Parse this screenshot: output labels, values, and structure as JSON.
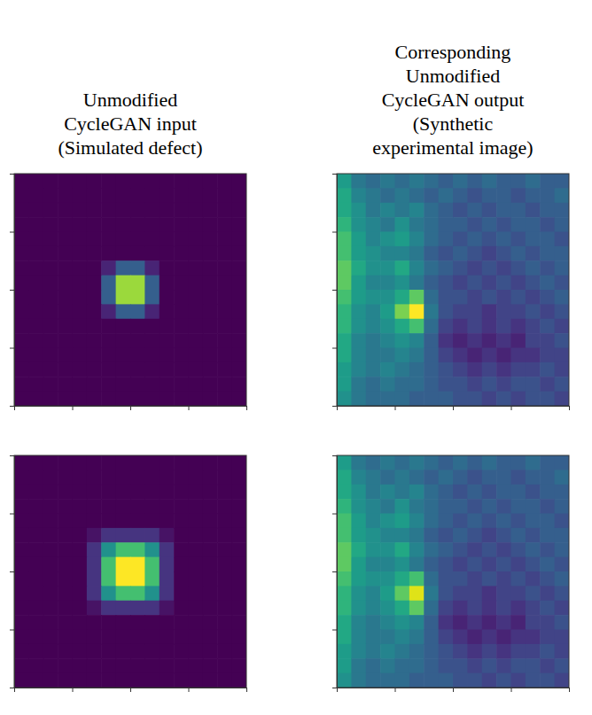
{
  "chart_data": [
    {
      "type": "heatmap",
      "title": "Unmodified CycleGAN input (Simulated defect)",
      "color": "viridis",
      "zlim": [
        0,
        1
      ],
      "xlim": [
        0,
        16
      ],
      "ylim": [
        0,
        16
      ],
      "xticks": [
        0,
        4,
        8,
        12,
        16
      ],
      "yticks": [
        0,
        4,
        8,
        12,
        16
      ],
      "tick_labels": false,
      "cells": [
        [
          0,
          0,
          0,
          0,
          0,
          0,
          0,
          0,
          0,
          0,
          0,
          0,
          0,
          0,
          0,
          0
        ],
        [
          0,
          0,
          0,
          0,
          0,
          0,
          0,
          0,
          0,
          0,
          0,
          0,
          0,
          0,
          0,
          0
        ],
        [
          0,
          0,
          0,
          0,
          0,
          0,
          0,
          0,
          0,
          0,
          0,
          0,
          0,
          0,
          0,
          0
        ],
        [
          0,
          0,
          0,
          0,
          0,
          0,
          0,
          0,
          0,
          0,
          0,
          0,
          0,
          0,
          0,
          0
        ],
        [
          0,
          0,
          0,
          0,
          0,
          0,
          0,
          0,
          0,
          0,
          0,
          0,
          0,
          0,
          0,
          0
        ],
        [
          0,
          0,
          0,
          0,
          0,
          0,
          0,
          0,
          0,
          0,
          0,
          0,
          0,
          0,
          0,
          0
        ],
        [
          0,
          0,
          0,
          0,
          0,
          0,
          0.1,
          0.3,
          0.3,
          0.1,
          0,
          0,
          0,
          0,
          0,
          0
        ],
        [
          0,
          0,
          0,
          0,
          0,
          0,
          0.3,
          0.85,
          0.85,
          0.3,
          0,
          0,
          0,
          0,
          0,
          0
        ],
        [
          0,
          0,
          0,
          0,
          0,
          0,
          0.3,
          0.85,
          0.85,
          0.3,
          0,
          0,
          0,
          0,
          0,
          0
        ],
        [
          0,
          0,
          0,
          0,
          0,
          0,
          0.1,
          0.3,
          0.3,
          0.1,
          0,
          0,
          0,
          0,
          0,
          0
        ],
        [
          0,
          0,
          0,
          0,
          0,
          0,
          0,
          0,
          0,
          0,
          0,
          0,
          0,
          0,
          0,
          0
        ],
        [
          0,
          0,
          0,
          0,
          0,
          0,
          0,
          0,
          0,
          0,
          0,
          0,
          0,
          0,
          0,
          0
        ],
        [
          0,
          0,
          0,
          0,
          0,
          0,
          0,
          0,
          0,
          0,
          0,
          0,
          0,
          0,
          0,
          0
        ],
        [
          0,
          0,
          0,
          0,
          0,
          0,
          0,
          0,
          0,
          0,
          0,
          0,
          0,
          0,
          0,
          0
        ],
        [
          0,
          0,
          0,
          0,
          0,
          0,
          0,
          0,
          0,
          0,
          0,
          0,
          0,
          0,
          0,
          0
        ],
        [
          0,
          0,
          0,
          0,
          0,
          0,
          0,
          0,
          0,
          0,
          0,
          0,
          0,
          0,
          0,
          0
        ]
      ]
    },
    {
      "type": "heatmap",
      "title": "Corresponding Unmodified CycleGAN output (Synthetic experimental image)",
      "color": "viridis",
      "zlim": [
        0,
        1
      ],
      "xlim": [
        0,
        16
      ],
      "ylim": [
        0,
        16
      ],
      "xticks": [
        0,
        4,
        8,
        12,
        16
      ],
      "yticks": [
        0,
        4,
        8,
        12,
        16
      ],
      "tick_labels": false,
      "cells": [
        [
          0.55,
          0.4,
          0.35,
          0.4,
          0.35,
          0.4,
          0.35,
          0.3,
          0.35,
          0.3,
          0.35,
          0.3,
          0.3,
          0.35,
          0.3,
          0.3
        ],
        [
          0.6,
          0.45,
          0.4,
          0.35,
          0.4,
          0.35,
          0.3,
          0.35,
          0.3,
          0.25,
          0.3,
          0.3,
          0.25,
          0.3,
          0.3,
          0.35
        ],
        [
          0.6,
          0.5,
          0.4,
          0.45,
          0.4,
          0.45,
          0.35,
          0.3,
          0.25,
          0.3,
          0.25,
          0.3,
          0.3,
          0.25,
          0.3,
          0.3
        ],
        [
          0.65,
          0.5,
          0.45,
          0.4,
          0.5,
          0.4,
          0.35,
          0.3,
          0.3,
          0.25,
          0.3,
          0.25,
          0.3,
          0.3,
          0.25,
          0.3
        ],
        [
          0.7,
          0.55,
          0.45,
          0.5,
          0.55,
          0.45,
          0.35,
          0.3,
          0.25,
          0.3,
          0.25,
          0.3,
          0.25,
          0.3,
          0.3,
          0.25
        ],
        [
          0.7,
          0.55,
          0.5,
          0.45,
          0.45,
          0.4,
          0.3,
          0.25,
          0.3,
          0.25,
          0.2,
          0.25,
          0.3,
          0.25,
          0.3,
          0.3
        ],
        [
          0.75,
          0.6,
          0.5,
          0.5,
          0.6,
          0.45,
          0.35,
          0.3,
          0.25,
          0.2,
          0.25,
          0.2,
          0.25,
          0.3,
          0.25,
          0.3
        ],
        [
          0.75,
          0.55,
          0.45,
          0.45,
          0.5,
          0.4,
          0.3,
          0.25,
          0.2,
          0.25,
          0.2,
          0.25,
          0.2,
          0.25,
          0.3,
          0.25
        ],
        [
          0.7,
          0.55,
          0.5,
          0.5,
          0.6,
          0.75,
          0.35,
          0.25,
          0.25,
          0.2,
          0.25,
          0.2,
          0.25,
          0.2,
          0.25,
          0.3
        ],
        [
          0.65,
          0.5,
          0.45,
          0.55,
          0.8,
          1.0,
          0.4,
          0.25,
          0.2,
          0.2,
          0.15,
          0.2,
          0.2,
          0.25,
          0.2,
          0.25
        ],
        [
          0.65,
          0.5,
          0.45,
          0.5,
          0.6,
          0.7,
          0.35,
          0.2,
          0.15,
          0.2,
          0.15,
          0.2,
          0.15,
          0.2,
          0.25,
          0.2
        ],
        [
          0.6,
          0.45,
          0.4,
          0.45,
          0.5,
          0.45,
          0.3,
          0.15,
          0.1,
          0.15,
          0.1,
          0.15,
          0.1,
          0.2,
          0.2,
          0.25
        ],
        [
          0.6,
          0.45,
          0.4,
          0.4,
          0.45,
          0.4,
          0.3,
          0.2,
          0.15,
          0.1,
          0.15,
          0.1,
          0.15,
          0.15,
          0.2,
          0.2
        ],
        [
          0.55,
          0.45,
          0.4,
          0.45,
          0.4,
          0.35,
          0.3,
          0.25,
          0.2,
          0.15,
          0.2,
          0.15,
          0.2,
          0.2,
          0.25,
          0.2
        ],
        [
          0.55,
          0.4,
          0.35,
          0.4,
          0.35,
          0.35,
          0.3,
          0.25,
          0.25,
          0.2,
          0.25,
          0.2,
          0.25,
          0.25,
          0.2,
          0.25
        ],
        [
          0.5,
          0.4,
          0.35,
          0.35,
          0.35,
          0.3,
          0.3,
          0.3,
          0.25,
          0.25,
          0.2,
          0.25,
          0.2,
          0.25,
          0.25,
          0.2
        ]
      ]
    },
    {
      "type": "heatmap",
      "color": "viridis",
      "zlim": [
        0,
        1
      ],
      "xlim": [
        0,
        16
      ],
      "ylim": [
        0,
        16
      ],
      "xticks": [
        0,
        4,
        8,
        12,
        16
      ],
      "yticks": [
        0,
        4,
        8,
        12,
        16
      ],
      "tick_labels": false,
      "cells": [
        [
          0,
          0,
          0,
          0,
          0,
          0,
          0,
          0,
          0,
          0,
          0,
          0,
          0,
          0,
          0,
          0
        ],
        [
          0,
          0,
          0,
          0,
          0,
          0,
          0,
          0,
          0,
          0,
          0,
          0,
          0,
          0,
          0,
          0
        ],
        [
          0,
          0,
          0,
          0,
          0,
          0,
          0,
          0,
          0,
          0,
          0,
          0,
          0,
          0,
          0,
          0
        ],
        [
          0,
          0,
          0,
          0,
          0,
          0,
          0,
          0,
          0,
          0,
          0,
          0,
          0,
          0,
          0,
          0
        ],
        [
          0,
          0,
          0,
          0,
          0,
          0,
          0,
          0,
          0,
          0,
          0,
          0,
          0,
          0,
          0,
          0
        ],
        [
          0,
          0,
          0,
          0,
          0,
          0.05,
          0.15,
          0.15,
          0.15,
          0.15,
          0.05,
          0,
          0,
          0,
          0,
          0
        ],
        [
          0,
          0,
          0,
          0,
          0,
          0.15,
          0.5,
          0.7,
          0.7,
          0.5,
          0.15,
          0,
          0,
          0,
          0,
          0
        ],
        [
          0,
          0,
          0,
          0,
          0,
          0.15,
          0.7,
          1.0,
          1.0,
          0.7,
          0.15,
          0,
          0,
          0,
          0,
          0
        ],
        [
          0,
          0,
          0,
          0,
          0,
          0.15,
          0.7,
          1.0,
          1.0,
          0.7,
          0.15,
          0,
          0,
          0,
          0,
          0
        ],
        [
          0,
          0,
          0,
          0,
          0,
          0.15,
          0.5,
          0.7,
          0.7,
          0.5,
          0.15,
          0,
          0,
          0,
          0,
          0
        ],
        [
          0,
          0,
          0,
          0,
          0,
          0.05,
          0.15,
          0.15,
          0.15,
          0.15,
          0.05,
          0,
          0,
          0,
          0,
          0
        ],
        [
          0,
          0,
          0,
          0,
          0,
          0,
          0,
          0,
          0,
          0,
          0,
          0,
          0,
          0,
          0,
          0
        ],
        [
          0,
          0,
          0,
          0,
          0,
          0,
          0,
          0,
          0,
          0,
          0,
          0,
          0,
          0,
          0,
          0
        ],
        [
          0,
          0,
          0,
          0,
          0,
          0,
          0,
          0,
          0,
          0,
          0,
          0,
          0,
          0,
          0,
          0
        ],
        [
          0,
          0,
          0,
          0,
          0,
          0,
          0,
          0,
          0,
          0,
          0,
          0,
          0,
          0,
          0,
          0
        ],
        [
          0,
          0,
          0,
          0,
          0,
          0,
          0,
          0,
          0,
          0,
          0,
          0,
          0,
          0,
          0,
          0
        ]
      ]
    },
    {
      "type": "heatmap",
      "color": "viridis",
      "zlim": [
        0,
        1
      ],
      "xlim": [
        0,
        16
      ],
      "ylim": [
        0,
        16
      ],
      "xticks": [
        0,
        4,
        8,
        12,
        16
      ],
      "yticks": [
        0,
        4,
        8,
        12,
        16
      ],
      "tick_labels": false,
      "cells": [
        [
          0.55,
          0.4,
          0.35,
          0.4,
          0.35,
          0.4,
          0.35,
          0.3,
          0.35,
          0.3,
          0.35,
          0.3,
          0.3,
          0.35,
          0.3,
          0.3
        ],
        [
          0.6,
          0.45,
          0.4,
          0.35,
          0.4,
          0.35,
          0.3,
          0.35,
          0.3,
          0.25,
          0.3,
          0.3,
          0.25,
          0.3,
          0.3,
          0.35
        ],
        [
          0.6,
          0.5,
          0.4,
          0.45,
          0.4,
          0.45,
          0.35,
          0.3,
          0.25,
          0.3,
          0.25,
          0.3,
          0.3,
          0.25,
          0.3,
          0.3
        ],
        [
          0.65,
          0.5,
          0.45,
          0.4,
          0.5,
          0.4,
          0.35,
          0.3,
          0.3,
          0.25,
          0.3,
          0.25,
          0.3,
          0.3,
          0.25,
          0.3
        ],
        [
          0.7,
          0.55,
          0.45,
          0.5,
          0.55,
          0.45,
          0.35,
          0.3,
          0.25,
          0.3,
          0.25,
          0.3,
          0.25,
          0.3,
          0.3,
          0.25
        ],
        [
          0.7,
          0.55,
          0.5,
          0.45,
          0.45,
          0.4,
          0.3,
          0.25,
          0.3,
          0.25,
          0.2,
          0.25,
          0.3,
          0.25,
          0.3,
          0.3
        ],
        [
          0.75,
          0.6,
          0.5,
          0.5,
          0.6,
          0.45,
          0.35,
          0.3,
          0.25,
          0.2,
          0.25,
          0.2,
          0.25,
          0.3,
          0.25,
          0.3
        ],
        [
          0.75,
          0.55,
          0.45,
          0.45,
          0.5,
          0.4,
          0.3,
          0.25,
          0.2,
          0.25,
          0.2,
          0.25,
          0.2,
          0.25,
          0.3,
          0.25
        ],
        [
          0.7,
          0.55,
          0.5,
          0.5,
          0.6,
          0.7,
          0.35,
          0.25,
          0.25,
          0.2,
          0.25,
          0.2,
          0.25,
          0.2,
          0.25,
          0.3
        ],
        [
          0.65,
          0.5,
          0.45,
          0.55,
          0.75,
          0.95,
          0.4,
          0.25,
          0.2,
          0.2,
          0.15,
          0.2,
          0.2,
          0.25,
          0.2,
          0.25
        ],
        [
          0.65,
          0.5,
          0.45,
          0.5,
          0.6,
          0.75,
          0.35,
          0.2,
          0.15,
          0.2,
          0.15,
          0.2,
          0.15,
          0.2,
          0.25,
          0.2
        ],
        [
          0.6,
          0.45,
          0.4,
          0.45,
          0.5,
          0.45,
          0.3,
          0.15,
          0.1,
          0.15,
          0.1,
          0.15,
          0.1,
          0.2,
          0.2,
          0.25
        ],
        [
          0.6,
          0.45,
          0.4,
          0.4,
          0.45,
          0.4,
          0.3,
          0.2,
          0.15,
          0.1,
          0.15,
          0.1,
          0.15,
          0.15,
          0.2,
          0.2
        ],
        [
          0.55,
          0.45,
          0.4,
          0.45,
          0.4,
          0.35,
          0.3,
          0.25,
          0.2,
          0.15,
          0.2,
          0.15,
          0.2,
          0.2,
          0.25,
          0.2
        ],
        [
          0.55,
          0.4,
          0.35,
          0.4,
          0.35,
          0.35,
          0.3,
          0.25,
          0.25,
          0.2,
          0.25,
          0.2,
          0.25,
          0.25,
          0.2,
          0.25
        ],
        [
          0.5,
          0.4,
          0.35,
          0.35,
          0.35,
          0.3,
          0.3,
          0.3,
          0.25,
          0.25,
          0.2,
          0.25,
          0.2,
          0.25,
          0.25,
          0.2
        ]
      ]
    }
  ]
}
